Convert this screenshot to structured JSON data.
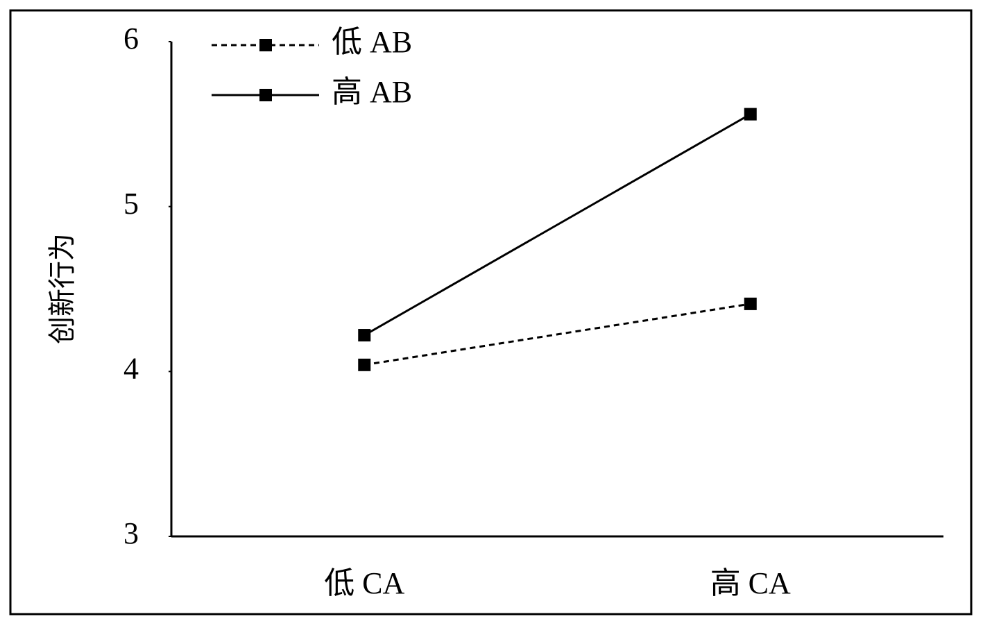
{
  "chart_data": {
    "type": "line",
    "y_label": "创新行为",
    "categories": [
      "低 CA",
      "高 CA"
    ],
    "series": [
      {
        "name": "低 AB",
        "color": "#000000",
        "dashed": true,
        "values": [
          4.04,
          4.41
        ]
      },
      {
        "name": "高 AB",
        "color": "#000000",
        "dashed": false,
        "values": [
          4.22,
          5.56
        ]
      }
    ],
    "ylim": [
      3,
      6
    ],
    "yticks": [
      3,
      4,
      5,
      6
    ],
    "grid": false,
    "legend": "top-left"
  }
}
